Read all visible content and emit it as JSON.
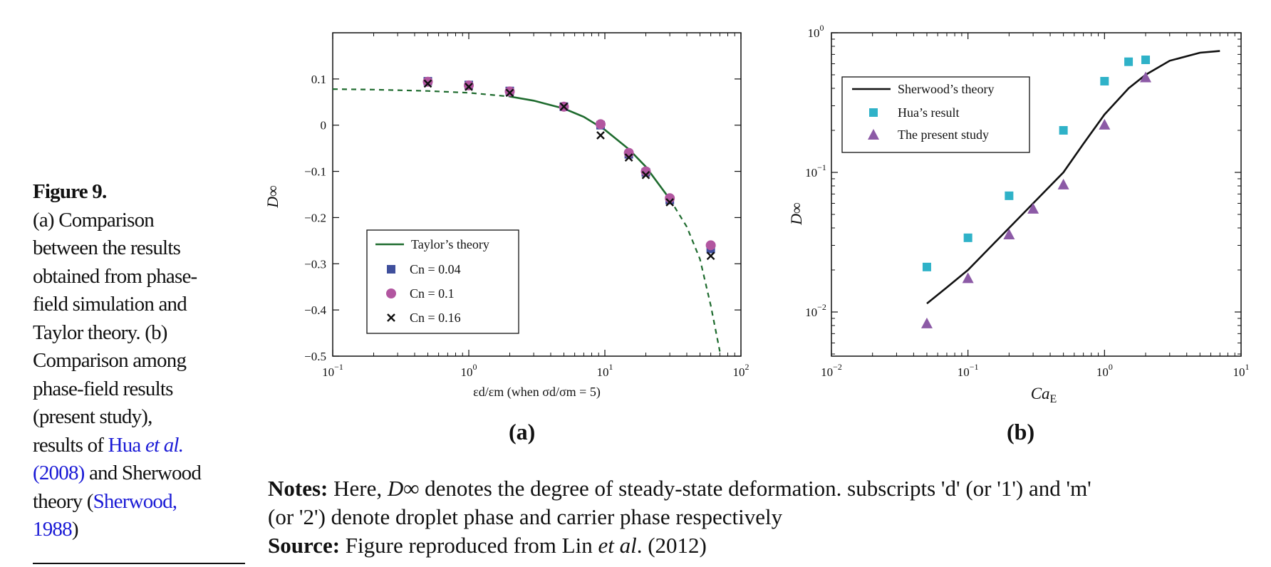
{
  "caption": {
    "title": "Figure 9.",
    "lines": [
      "(a) Comparison",
      "between the results",
      "obtained from phase-",
      "field simulation and",
      "Taylor theory. (b)",
      "Comparison among",
      "phase-field results",
      "(present study),"
    ],
    "results_of": "results of ",
    "hua_link": "Hua ",
    "hua_etal": "et al.",
    "hua_year": "(2008)",
    "and_sherwood": " and Sherwood",
    "theory_open": "theory (",
    "sherwood_link": "Sherwood,",
    "sherwood_year": "1988",
    "close": ")"
  },
  "notes": {
    "label": "Notes:",
    "text1": " Here, ",
    "symbol": "D∞",
    "text2": " denotes the degree of steady-state deformation. subscripts 'd' (or '1') and 'm'",
    "text3": "(or '2') denote droplet phase and carrier phase respectively",
    "source_label": "Source:",
    "source_text1": " Figure reproduced from Lin ",
    "source_etal": "et al",
    "source_text2": ". (2012)"
  },
  "chart_data": [
    {
      "panel": "(a)",
      "type": "scatter",
      "xscale": "log",
      "xlim": [
        0.1,
        100
      ],
      "ylim": [
        -0.5,
        0.2
      ],
      "xlabel": "εd/εm (when σd/σm = 5)",
      "ylabel": "D∞",
      "x_ticks": [
        "10",
        "10",
        "10",
        "10"
      ],
      "x_tick_exps": [
        "−1",
        "0",
        "1",
        "2"
      ],
      "y_ticks": [
        "0.1",
        "0",
        "−0.1",
        "−0.2",
        "−0.3",
        "−0.4",
        "−0.5"
      ],
      "y_tick_values": [
        0.1,
        0,
        -0.1,
        -0.2,
        -0.3,
        -0.4,
        -0.5
      ],
      "legend_position": "bottom-left",
      "theory": {
        "name": "Taylor’s theory",
        "color": "#1e6b2e",
        "x": [
          0.1,
          0.2,
          0.5,
          1,
          2,
          3,
          5,
          7,
          10,
          15,
          20,
          30,
          40,
          50,
          60,
          70
        ],
        "y": [
          0.078,
          0.077,
          0.074,
          0.07,
          0.062,
          0.053,
          0.036,
          0.018,
          -0.01,
          -0.052,
          -0.09,
          -0.16,
          -0.22,
          -0.29,
          -0.39,
          -0.49
        ],
        "solid_range": [
          2,
          30
        ]
      },
      "series": [
        {
          "name": "Cn = 0.04",
          "marker": "square",
          "color": "#3f4f9c",
          "x": [
            0.5,
            1,
            2,
            5,
            9.3,
            15,
            20,
            30,
            60
          ],
          "y": [
            0.095,
            0.087,
            0.074,
            0.04,
            0,
            -0.063,
            -0.102,
            -0.162,
            -0.268
          ]
        },
        {
          "name": "Cn = 0.1",
          "marker": "circle",
          "color": "#b256a0",
          "x": [
            0.5,
            1,
            2,
            5,
            9.3,
            15,
            20,
            30,
            60
          ],
          "y": [
            0.094,
            0.086,
            0.073,
            0.04,
            0.002,
            -0.06,
            -0.1,
            -0.158,
            -0.26
          ]
        },
        {
          "name": "Cn = 0.16",
          "marker": "cross",
          "color": "#111111",
          "x": [
            0.5,
            1,
            2,
            5,
            9.3,
            15,
            20,
            30,
            60
          ],
          "y": [
            0.09,
            0.083,
            0.07,
            0.04,
            -0.022,
            -0.07,
            -0.108,
            -0.167,
            -0.283
          ]
        }
      ]
    },
    {
      "panel": "(b)",
      "type": "scatter",
      "xscale": "log",
      "yscale": "log",
      "xlim": [
        0.01,
        10
      ],
      "ylim": [
        0.005,
        1
      ],
      "xlabel": "Ca",
      "xlabel_sub": "E",
      "ylabel": "D∞",
      "x_tick_exps": [
        "−2",
        "−1",
        "0",
        "1"
      ],
      "y_tick_exps": [
        "0",
        "−1",
        "−2"
      ],
      "legend_position": "top-left",
      "theory": {
        "name": "Sherwood’s theory",
        "color": "#111111",
        "x": [
          0.05,
          0.07,
          0.1,
          0.15,
          0.2,
          0.3,
          0.5,
          0.7,
          1,
          1.5,
          2,
          3,
          5,
          7
        ],
        "y": [
          0.0115,
          0.015,
          0.02,
          0.03,
          0.04,
          0.06,
          0.1,
          0.16,
          0.26,
          0.4,
          0.5,
          0.63,
          0.72,
          0.74
        ]
      },
      "series": [
        {
          "name": "Hua’s result",
          "marker": "square",
          "color": "#2fb2c8",
          "x": [
            0.05,
            0.1,
            0.2,
            0.5,
            1,
            1.5,
            2
          ],
          "y": [
            0.021,
            0.034,
            0.068,
            0.2,
            0.45,
            0.62,
            0.64
          ]
        },
        {
          "name": "The present study",
          "marker": "triangle",
          "color": "#8c5aa6",
          "x": [
            0.05,
            0.1,
            0.2,
            0.3,
            0.5,
            1,
            2
          ],
          "y": [
            0.0083,
            0.0175,
            0.036,
            0.055,
            0.082,
            0.22,
            0.48
          ]
        }
      ]
    }
  ]
}
